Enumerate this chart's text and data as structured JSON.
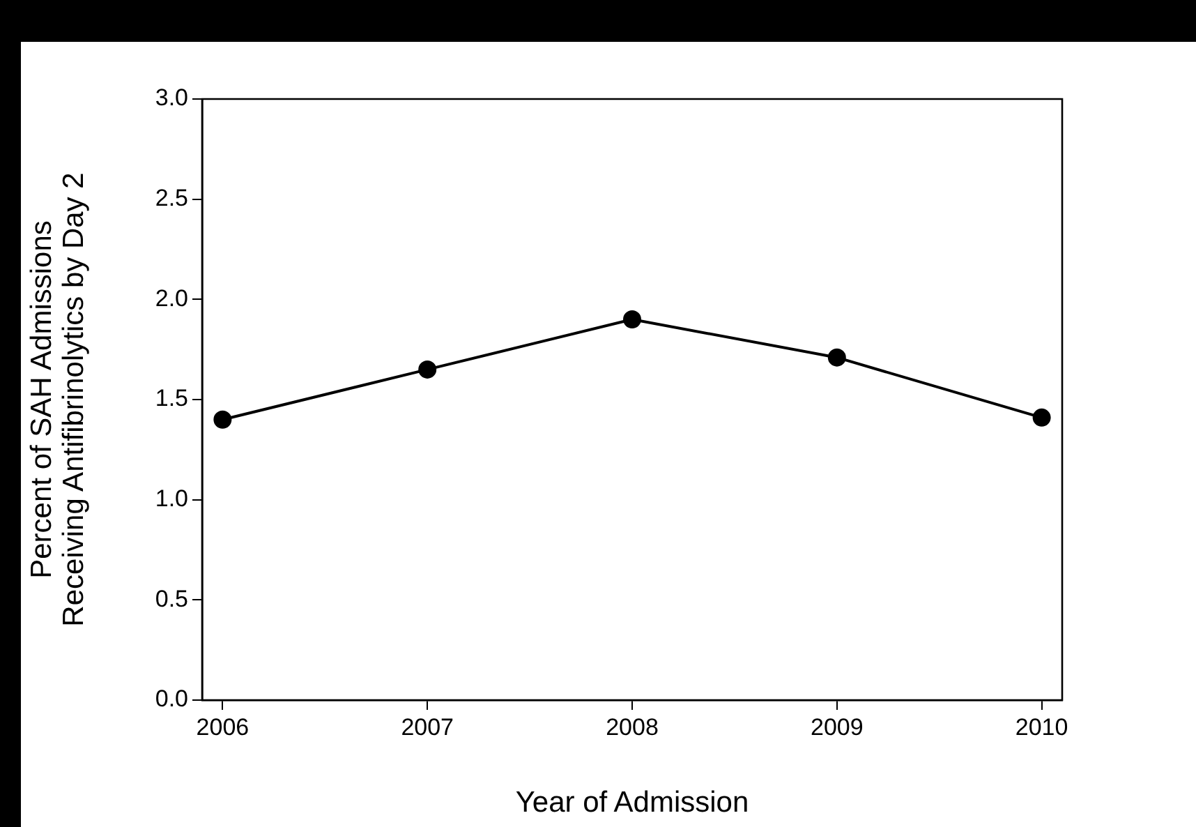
{
  "chart_data": {
    "type": "line",
    "xlabel": "Year of Admission",
    "ylabel": "Percent of SAH Admissions\nReceiving Antifibrinolytics by Day 2",
    "x": [
      2006,
      2007,
      2008,
      2009,
      2010
    ],
    "series": [
      {
        "color": "#000000",
        "values": [
          1.4,
          1.65,
          1.9,
          1.71,
          1.41
        ]
      }
    ],
    "xlim": [
      2005.9,
      2010.1
    ],
    "xticks": [
      2006,
      2007,
      2008,
      2009,
      2010
    ],
    "ylim": [
      0,
      3
    ],
    "yticks": [
      {
        "value": 0,
        "label": "0.0"
      },
      {
        "value": 0.5,
        "label": "0.5"
      },
      {
        "value": 1,
        "label": "1.0"
      },
      {
        "value": 1.5,
        "label": "1.5"
      },
      {
        "value": 2,
        "label": "2.0"
      },
      {
        "value": 2.5,
        "label": "2.5"
      },
      {
        "value": 3,
        "label": "3.0"
      }
    ],
    "grid": false,
    "legend": false,
    "marker": "circle",
    "line_style": "solid"
  }
}
